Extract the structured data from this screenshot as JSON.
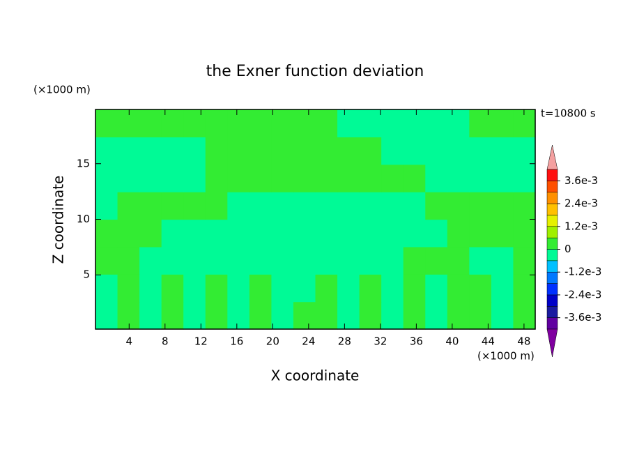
{
  "chart_data": {
    "type": "contour",
    "title": "the Exner function deviation",
    "x_label": "X coordinate",
    "y_label": "Z coordinate",
    "x_unit": "(×1000 m)",
    "y_unit": "(×1000 m)",
    "annotation": "t=10800 s",
    "xlim": [
      0.25,
      49.25
    ],
    "ylim": [
      0.125,
      19.875
    ],
    "xticks": [
      4,
      8,
      12,
      16,
      20,
      24,
      28,
      32,
      36,
      40,
      44,
      48
    ],
    "yticks": [
      5,
      10,
      15
    ],
    "levels": [
      -0.0042,
      -0.0036,
      -0.003,
      -0.0024,
      -0.0018,
      -0.0012,
      -0.0006,
      0,
      0.0006,
      0.0012,
      0.0018,
      0.0024,
      0.003,
      0.0036,
      0.0042
    ],
    "colors": [
      "#6000a0",
      "#1a1aa0",
      "#0000c8",
      "#0030ff",
      "#0078ff",
      "#00c0ff",
      "#00fa96",
      "#33ec33",
      "#a0f000",
      "#e6f000",
      "#ffc000",
      "#ff9000",
      "#ff5000",
      "#ff1010"
    ],
    "extend_colors": [
      "#8000a0",
      "#f4a0a0"
    ],
    "colorbar_ticks": [
      {
        "value": -0.0036,
        "label": "-3.6e-3"
      },
      {
        "value": -0.0024,
        "label": "-2.4e-3"
      },
      {
        "value": -0.0012,
        "label": "-1.2e-3"
      },
      0,
      {
        "value": 0.0012,
        "label": "1.2e-3"
      },
      {
        "value": 0.0024,
        "label": "2.4e-3"
      },
      {
        "value": 0.0036,
        "label": "3.6e-3"
      }
    ],
    "z": [
      [
        -0.0003,
        0.0003,
        -0.0003,
        0.0003,
        -0.0003,
        0.0003,
        -0.0003,
        0.0003,
        -0.0003,
        0.0003,
        0.0003,
        -0.0003,
        0.0003,
        -0.0003,
        0.0003,
        -0.0003,
        0.0003,
        0.0003,
        -0.0003,
        0.0003
      ],
      [
        -0.0003,
        0.0003,
        -0.0003,
        0.0003,
        -0.0003,
        0.0003,
        -0.0003,
        0.0003,
        -0.0003,
        -0.0003,
        0.0003,
        -0.0003,
        0.0003,
        -0.0003,
        0.0003,
        -0.0003,
        0.0003,
        0.0003,
        -0.0003,
        0.0003
      ],
      [
        0.0003,
        0.0003,
        -0.0003,
        -0.0003,
        -0.0003,
        -0.0003,
        -0.0003,
        -0.0003,
        -0.0003,
        -0.0003,
        -0.0003,
        -0.0003,
        -0.0003,
        -0.0003,
        0.0003,
        0.0003,
        0.0003,
        -0.0003,
        -0.0003,
        0.0003
      ],
      [
        0.0003,
        0.0003,
        0.0003,
        -0.0003,
        -0.0003,
        -0.0003,
        -0.0003,
        -0.0003,
        -0.0003,
        -0.0003,
        -0.0003,
        -0.0003,
        -0.0003,
        -0.0003,
        -0.0003,
        -0.0003,
        0.0003,
        0.0003,
        0.0003,
        0.0003
      ],
      [
        -0.0003,
        0.0003,
        0.0003,
        0.0003,
        0.0003,
        0.0003,
        -0.0003,
        -0.0003,
        -0.0003,
        -0.0003,
        -0.0003,
        -0.0003,
        -0.0003,
        -0.0003,
        -0.0003,
        0.0003,
        0.0003,
        0.0003,
        0.0003,
        0.0003
      ],
      [
        -0.0003,
        -0.0003,
        -0.0003,
        -0.0003,
        -0.0003,
        0.0003,
        0.0003,
        0.0003,
        0.0003,
        0.0003,
        0.0003,
        0.0003,
        0.0003,
        0.0003,
        0.0003,
        -0.0003,
        -0.0003,
        -0.0003,
        -0.0003,
        -0.0003
      ],
      [
        -0.0003,
        -0.0003,
        -0.0003,
        -0.0003,
        -0.0003,
        0.0003,
        0.0003,
        0.0003,
        0.0003,
        0.0003,
        0.0003,
        0.0003,
        0.0003,
        -0.0003,
        -0.0003,
        -0.0003,
        -0.0003,
        -0.0003,
        -0.0003,
        -0.0003
      ],
      [
        0.0003,
        0.0003,
        0.0003,
        0.0003,
        0.0003,
        0.0003,
        0.0003,
        0.0003,
        0.0003,
        0.0003,
        0.0003,
        -0.0003,
        -0.0003,
        -0.0003,
        -0.0003,
        -0.0003,
        -0.0003,
        0.0003,
        0.0003,
        0.0003
      ]
    ]
  }
}
